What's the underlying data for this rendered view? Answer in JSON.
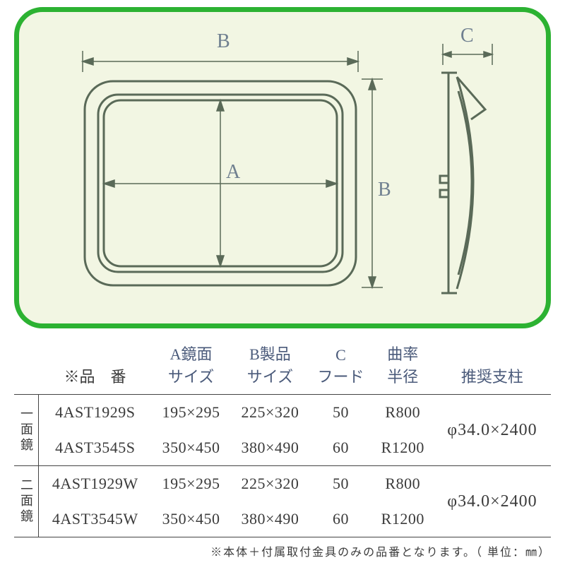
{
  "diagram": {
    "panel": {
      "bg": "#f2f6e3",
      "border": "#2cb232",
      "border_width": 7,
      "radius": 40
    },
    "outline_color": "#5a6a58",
    "labels": {
      "A": "A",
      "B": "B",
      "C": "C"
    },
    "label_color": "#708090",
    "dim_line_color": "#5a6a58"
  },
  "table": {
    "header": {
      "part_no": "※品　番",
      "a": "A鏡面\nサイズ",
      "b": "B製品\nサイズ",
      "c": "C\nフード",
      "radius": "曲率\n半径",
      "recommend": "推奨支柱"
    },
    "groups": [
      {
        "label": "一面鏡",
        "recommend": "φ34.0×2400",
        "rows": [
          {
            "pn": "4AST1929S",
            "a": "195×295",
            "b": "225×320",
            "c": "50",
            "r": "R800"
          },
          {
            "pn": "4AST3545S",
            "a": "350×450",
            "b": "380×490",
            "c": "60",
            "r": "R1200"
          }
        ]
      },
      {
        "label": "二面鏡",
        "recommend": "φ34.0×2400",
        "rows": [
          {
            "pn": "4AST1929W",
            "a": "195×295",
            "b": "225×320",
            "c": "50",
            "r": "R800"
          },
          {
            "pn": "4AST3545W",
            "a": "350×450",
            "b": "380×490",
            "c": "60",
            "r": "R1200"
          }
        ]
      }
    ]
  },
  "footnote": "※本体＋付属取付金具のみの品番となります。（ 単位：㎜）",
  "colors": {
    "header_text": "#4a5a7a",
    "body_text": "#3b3b3b",
    "rule": "#444444"
  },
  "fontsize": {
    "header": 22,
    "body": 22,
    "vert": 18,
    "note": 16,
    "recommend": 24
  }
}
